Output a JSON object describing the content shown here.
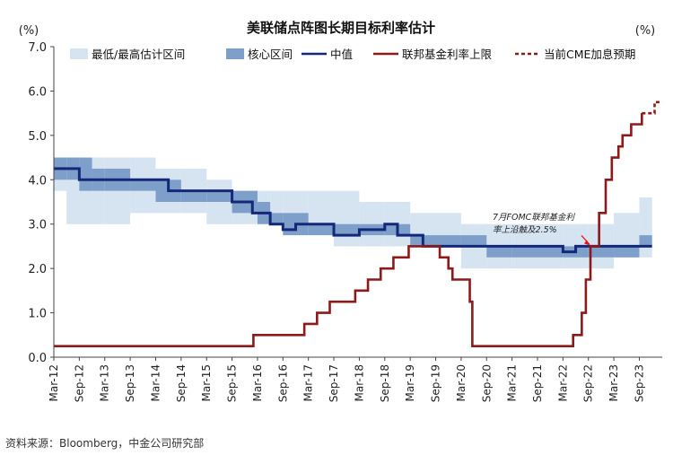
{
  "chart_data": {
    "type": "line",
    "title": "美联储点阵图长期目标利率估计",
    "unit_left": "(%)",
    "unit_right": "(%)",
    "ylim": [
      0,
      7
    ],
    "yticks": [
      "0.0",
      "1.0",
      "2.0",
      "3.0",
      "4.0",
      "5.0",
      "6.0",
      "7.0"
    ],
    "ytick_values": [
      0,
      1,
      2,
      3,
      4,
      5,
      6,
      7
    ],
    "xlim": [
      2012.0,
      2023.95
    ],
    "xticks": [
      {
        "label": "Mar-12",
        "x": 2012.0
      },
      {
        "label": "Sep-12",
        "x": 2012.5
      },
      {
        "label": "Mar-13",
        "x": 2013.0
      },
      {
        "label": "Sep-13",
        "x": 2013.5
      },
      {
        "label": "Mar-14",
        "x": 2014.0
      },
      {
        "label": "Sep-14",
        "x": 2014.5
      },
      {
        "label": "Mar-15",
        "x": 2015.0
      },
      {
        "label": "Sep-15",
        "x": 2015.5
      },
      {
        "label": "Mar-16",
        "x": 2016.0
      },
      {
        "label": "Sep-16",
        "x": 2016.5
      },
      {
        "label": "Mar-17",
        "x": 2017.0
      },
      {
        "label": "Sep-17",
        "x": 2017.5
      },
      {
        "label": "Mar-18",
        "x": 2018.0
      },
      {
        "label": "Sep-18",
        "x": 2018.5
      },
      {
        "label": "Mar-19",
        "x": 2019.0
      },
      {
        "label": "Sep-19",
        "x": 2019.5
      },
      {
        "label": "Mar-20",
        "x": 2020.0
      },
      {
        "label": "Sep-20",
        "x": 2020.5
      },
      {
        "label": "Mar-21",
        "x": 2021.0
      },
      {
        "label": "Sep-21",
        "x": 2021.5
      },
      {
        "label": "Mar-22",
        "x": 2022.0
      },
      {
        "label": "Sep-22",
        "x": 2022.5
      },
      {
        "label": "Mar-23",
        "x": 2023.0
      },
      {
        "label": "Sep-23",
        "x": 2023.5
      }
    ],
    "legend": [
      {
        "key": "range",
        "label": "最低/最高估计区间",
        "color": "#d6e3f1"
      },
      {
        "key": "core",
        "label": "核心区间",
        "color": "#7f9fcb"
      },
      {
        "key": "median",
        "label": "中值",
        "color": "#14287a"
      },
      {
        "key": "ffr",
        "label": "联邦基金利率上限",
        "color": "#8c1a1a"
      },
      {
        "key": "cme",
        "label": "当前CME加息预期",
        "color": "#8c1a1a"
      }
    ],
    "series": [
      {
        "key": "range",
        "type": "step-band",
        "points": [
          {
            "x": 2012.0,
            "lo": 3.75,
            "hi": 4.5
          },
          {
            "x": 2012.25,
            "lo": 3.0,
            "hi": 4.5
          },
          {
            "x": 2012.75,
            "lo": 3.0,
            "hi": 4.5
          },
          {
            "x": 2013.0,
            "lo": 3.0,
            "hi": 4.5
          },
          {
            "x": 2013.5,
            "lo": 3.25,
            "hi": 4.5
          },
          {
            "x": 2014.0,
            "lo": 3.25,
            "hi": 4.25
          },
          {
            "x": 2014.5,
            "lo": 3.25,
            "hi": 4.25
          },
          {
            "x": 2015.0,
            "lo": 3.0,
            "hi": 4.0
          },
          {
            "x": 2015.5,
            "lo": 3.0,
            "hi": 3.75
          },
          {
            "x": 2016.0,
            "lo": 3.0,
            "hi": 3.75
          },
          {
            "x": 2016.25,
            "lo": 3.0,
            "hi": 3.75
          },
          {
            "x": 2016.5,
            "lo": 2.75,
            "hi": 3.75
          },
          {
            "x": 2017.0,
            "lo": 2.75,
            "hi": 3.75
          },
          {
            "x": 2017.5,
            "lo": 2.5,
            "hi": 3.75
          },
          {
            "x": 2018.0,
            "lo": 2.5,
            "hi": 3.5
          },
          {
            "x": 2018.5,
            "lo": 2.5,
            "hi": 3.5
          },
          {
            "x": 2019.0,
            "lo": 2.5,
            "hi": 3.25
          },
          {
            "x": 2019.5,
            "lo": 2.5,
            "hi": 3.25
          },
          {
            "x": 2020.0,
            "lo": 2.0,
            "hi": 3.0
          },
          {
            "x": 2020.5,
            "lo": 2.0,
            "hi": 3.0
          },
          {
            "x": 2021.0,
            "lo": 2.0,
            "hi": 3.0
          },
          {
            "x": 2021.5,
            "lo": 2.0,
            "hi": 3.0
          },
          {
            "x": 2022.0,
            "lo": 2.0,
            "hi": 3.0
          },
          {
            "x": 2022.5,
            "lo": 2.0,
            "hi": 3.0
          },
          {
            "x": 2023.0,
            "lo": 2.25,
            "hi": 3.25
          },
          {
            "x": 2023.5,
            "lo": 2.25,
            "hi": 3.6
          },
          {
            "x": 2023.75,
            "lo": 2.25,
            "hi": 3.6
          }
        ]
      },
      {
        "key": "core",
        "type": "step-band",
        "points": [
          {
            "x": 2012.0,
            "lo": 4.0,
            "hi": 4.5
          },
          {
            "x": 2012.25,
            "lo": 4.0,
            "hi": 4.5
          },
          {
            "x": 2012.5,
            "lo": 3.75,
            "hi": 4.5
          },
          {
            "x": 2012.75,
            "lo": 3.75,
            "hi": 4.25
          },
          {
            "x": 2013.0,
            "lo": 3.75,
            "hi": 4.25
          },
          {
            "x": 2013.5,
            "lo": 3.75,
            "hi": 4.0
          },
          {
            "x": 2014.0,
            "lo": 3.5,
            "hi": 4.0
          },
          {
            "x": 2014.5,
            "lo": 3.5,
            "hi": 3.75
          },
          {
            "x": 2015.0,
            "lo": 3.5,
            "hi": 3.75
          },
          {
            "x": 2015.5,
            "lo": 3.25,
            "hi": 3.75
          },
          {
            "x": 2016.0,
            "lo": 3.0,
            "hi": 3.5
          },
          {
            "x": 2016.25,
            "lo": 3.0,
            "hi": 3.25
          },
          {
            "x": 2016.5,
            "lo": 2.75,
            "hi": 3.25
          },
          {
            "x": 2017.0,
            "lo": 2.75,
            "hi": 3.0
          },
          {
            "x": 2017.5,
            "lo": 2.75,
            "hi": 3.0
          },
          {
            "x": 2018.0,
            "lo": 2.75,
            "hi": 3.0
          },
          {
            "x": 2018.5,
            "lo": 2.75,
            "hi": 3.0
          },
          {
            "x": 2019.0,
            "lo": 2.5,
            "hi": 2.75
          },
          {
            "x": 2019.5,
            "lo": 2.5,
            "hi": 2.75
          },
          {
            "x": 2020.0,
            "lo": 2.5,
            "hi": 2.75
          },
          {
            "x": 2020.5,
            "lo": 2.25,
            "hi": 2.5
          },
          {
            "x": 2021.0,
            "lo": 2.25,
            "hi": 2.5
          },
          {
            "x": 2021.5,
            "lo": 2.25,
            "hi": 2.5
          },
          {
            "x": 2022.0,
            "lo": 2.25,
            "hi": 2.5
          },
          {
            "x": 2022.5,
            "lo": 2.25,
            "hi": 2.5
          },
          {
            "x": 2023.0,
            "lo": 2.25,
            "hi": 2.5
          },
          {
            "x": 2023.5,
            "lo": 2.5,
            "hi": 2.75
          },
          {
            "x": 2023.75,
            "lo": 2.5,
            "hi": 2.75
          }
        ]
      },
      {
        "key": "median",
        "type": "step-line",
        "points": [
          [
            2012.0,
            4.25
          ],
          [
            2012.5,
            4.0
          ],
          [
            2013.0,
            4.0
          ],
          [
            2013.5,
            4.0
          ],
          [
            2014.0,
            4.0
          ],
          [
            2014.25,
            3.75
          ],
          [
            2015.0,
            3.75
          ],
          [
            2015.5,
            3.5
          ],
          [
            2015.9,
            3.25
          ],
          [
            2016.25,
            3.0
          ],
          [
            2016.5,
            2.875
          ],
          [
            2016.75,
            3.0
          ],
          [
            2017.5,
            2.75
          ],
          [
            2018.0,
            2.875
          ],
          [
            2018.5,
            3.0
          ],
          [
            2018.75,
            2.75
          ],
          [
            2019.25,
            2.5
          ],
          [
            2020.0,
            2.5
          ],
          [
            2021.0,
            2.5
          ],
          [
            2022.0,
            2.375
          ],
          [
            2022.25,
            2.5
          ],
          [
            2023.75,
            2.5
          ]
        ]
      },
      {
        "key": "ffr",
        "type": "step-line",
        "points": [
          [
            2012.0,
            0.25
          ],
          [
            2015.92,
            0.5
          ],
          [
            2016.92,
            0.75
          ],
          [
            2017.17,
            1.0
          ],
          [
            2017.42,
            1.25
          ],
          [
            2017.92,
            1.5
          ],
          [
            2018.17,
            1.75
          ],
          [
            2018.42,
            2.0
          ],
          [
            2018.67,
            2.25
          ],
          [
            2018.97,
            2.5
          ],
          [
            2019.58,
            2.25
          ],
          [
            2019.75,
            2.0
          ],
          [
            2019.83,
            1.75
          ],
          [
            2020.17,
            1.25
          ],
          [
            2020.22,
            0.25
          ],
          [
            2022.2,
            0.5
          ],
          [
            2022.37,
            1.0
          ],
          [
            2022.45,
            1.75
          ],
          [
            2022.54,
            2.5
          ],
          [
            2022.71,
            3.25
          ],
          [
            2022.84,
            4.0
          ],
          [
            2022.96,
            4.5
          ],
          [
            2023.09,
            4.75
          ],
          [
            2023.17,
            5.0
          ],
          [
            2023.34,
            5.25
          ],
          [
            2023.55,
            5.5
          ]
        ]
      },
      {
        "key": "cme",
        "type": "step-line",
        "dashed": true,
        "points": [
          [
            2023.55,
            5.5
          ],
          [
            2023.8,
            5.5
          ],
          [
            2023.8,
            5.75
          ],
          [
            2023.95,
            5.75
          ]
        ]
      }
    ],
    "annotations": [
      {
        "text_lines": [
          "7月FOMC联邦基金利",
          "率上沿触及2.5%"
        ],
        "point": [
          2022.54,
          2.5
        ]
      }
    ]
  },
  "source": "资料来源：Bloomberg，中金公司研究部"
}
